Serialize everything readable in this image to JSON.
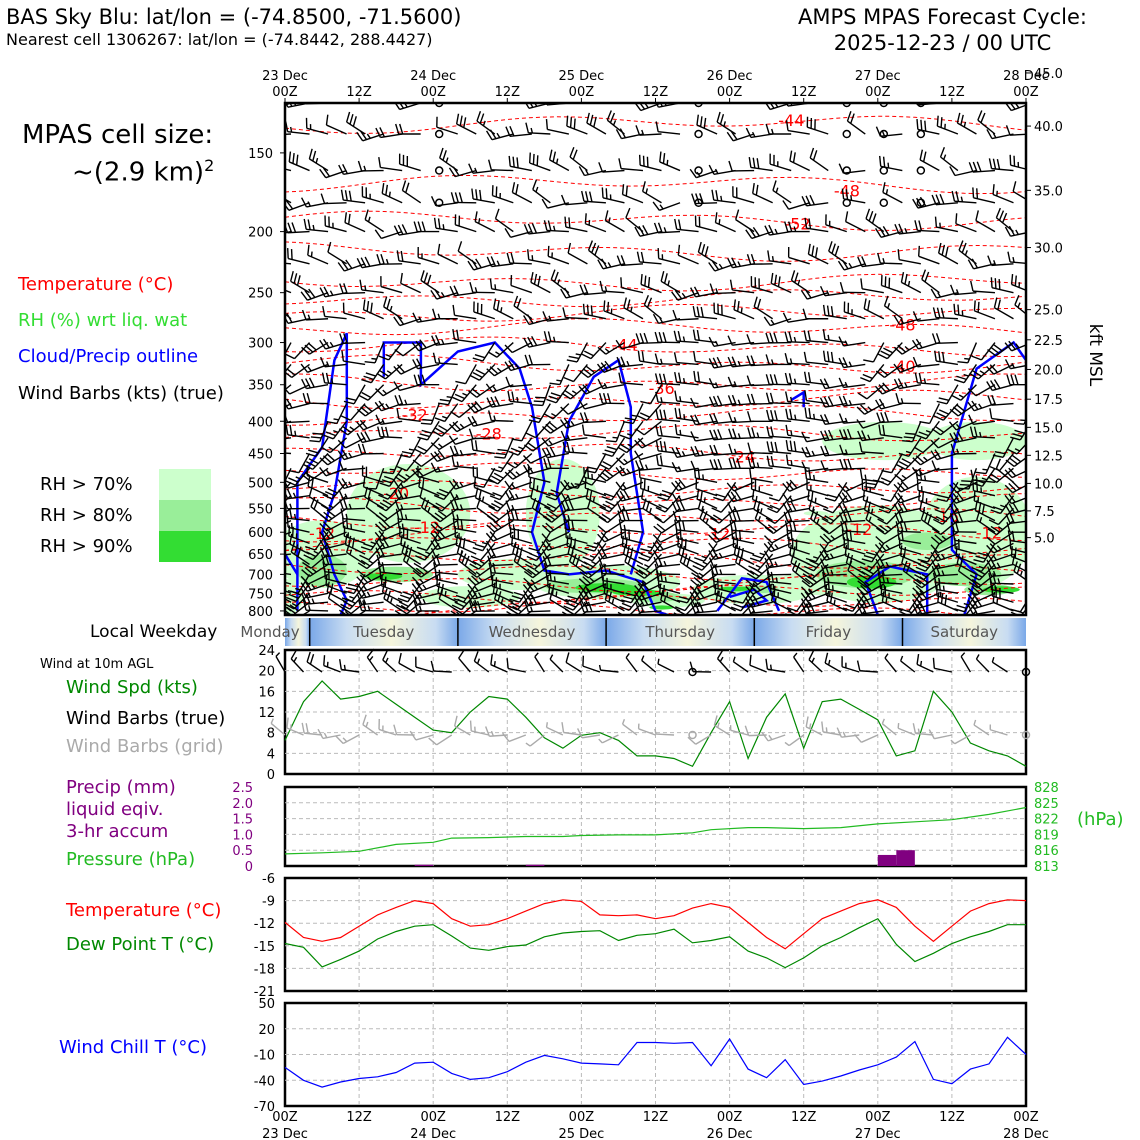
{
  "header": {
    "title": "BAS Sky Blu: lat/lon = (-74.8500, -71.5600)",
    "subtitle": "Nearest cell 1306267: lat/lon = (-74.8442, 288.4427)",
    "forecast_title": "AMPS MPAS Forecast Cycle:",
    "forecast_cycle": "2025-12-23 / 00 UTC"
  },
  "cell_size": {
    "line1": "MPAS cell size:",
    "line2": "~(2.9 km)",
    "sup": "2"
  },
  "legend": {
    "temperature": "Temperature (°C)",
    "rh": "RH (%) wrt liq. wat",
    "cloud": "Cloud/Precip outline",
    "wind": "Wind Barbs (kts) (true)",
    "rh70": "RH > 70%",
    "rh80": "RH > 80%",
    "rh90": "RH > 90%"
  },
  "colors": {
    "temp": "#ff0000",
    "cloud": "#0000ff",
    "rh70": "#ccffcc",
    "rh80": "#99ee99",
    "rh90": "#33dd33",
    "wind_speed": "#008800",
    "precip": "#800080",
    "pressure": "#22bb22",
    "dewpoint": "#008800",
    "windchill": "#0000ff",
    "grid_barb": "#aaaaaa"
  },
  "time_axis": {
    "top_labels": [
      {
        "h": 0,
        "l1": "23 Dec",
        "l2": "00Z"
      },
      {
        "h": 12,
        "l1": "",
        "l2": "12Z"
      },
      {
        "h": 24,
        "l1": "24 Dec",
        "l2": "00Z"
      },
      {
        "h": 36,
        "l1": "",
        "l2": "12Z"
      },
      {
        "h": 48,
        "l1": "25 Dec",
        "l2": "00Z"
      },
      {
        "h": 60,
        "l1": "",
        "l2": "12Z"
      },
      {
        "h": 72,
        "l1": "26 Dec",
        "l2": "00Z"
      },
      {
        "h": 84,
        "l1": "",
        "l2": "12Z"
      },
      {
        "h": 96,
        "l1": "27 Dec",
        "l2": "00Z"
      },
      {
        "h": 108,
        "l1": "",
        "l2": "12Z"
      },
      {
        "h": 120,
        "l1": "28 Dec",
        "l2": "00Z"
      }
    ],
    "hours_max": 120
  },
  "weekday": {
    "title": "Local Weekday",
    "days": [
      "Monday",
      "Tuesday",
      "Wednesday",
      "Thursday",
      "Friday",
      "Saturday"
    ]
  },
  "profile": {
    "pressure_ticks": [
      150,
      200,
      250,
      300,
      350,
      400,
      450,
      500,
      550,
      600,
      650,
      700,
      750,
      800
    ],
    "p_range": [
      125,
      812
    ],
    "kft_ticks": [
      {
        "p": 112,
        "label": "45.0"
      },
      {
        "p": 136,
        "label": "40.0"
      },
      {
        "p": 172,
        "label": "35.0"
      },
      {
        "p": 212,
        "label": "30.0"
      },
      {
        "p": 266,
        "label": "25.0"
      },
      {
        "p": 297,
        "label": "22.5"
      },
      {
        "p": 331,
        "label": "20.0"
      },
      {
        "p": 369,
        "label": "17.5"
      },
      {
        "p": 409,
        "label": "15.0"
      },
      {
        "p": 453,
        "label": "12.5"
      },
      {
        "p": 502,
        "label": "10.0"
      },
      {
        "p": 555,
        "label": "7.5"
      },
      {
        "p": 612,
        "label": "5.0"
      }
    ],
    "kft_label": "kft MSL",
    "temp_labels": [
      {
        "t": 82,
        "p": 133,
        "v": "-44"
      },
      {
        "t": 91,
        "p": 172,
        "v": "-48"
      },
      {
        "t": 83,
        "p": 194,
        "v": "-52"
      },
      {
        "t": 100,
        "p": 281,
        "v": "-48"
      },
      {
        "t": 55,
        "p": 302,
        "v": "-44"
      },
      {
        "t": 100,
        "p": 327,
        "v": "-40"
      },
      {
        "t": 61,
        "p": 354,
        "v": "-36"
      },
      {
        "t": 21,
        "p": 390,
        "v": "-32"
      },
      {
        "t": 33,
        "p": 418,
        "v": "-28"
      },
      {
        "t": 74,
        "p": 455,
        "v": "-24"
      },
      {
        "t": 18,
        "p": 520,
        "v": "-20"
      },
      {
        "t": 107,
        "p": 566,
        "v": "-16"
      },
      {
        "t": 23,
        "p": 589,
        "v": "-12"
      },
      {
        "t": 6,
        "p": 602,
        "v": "-12"
      },
      {
        "t": 70,
        "p": 603,
        "v": "-12"
      },
      {
        "t": 93,
        "p": 593,
        "v": "-12"
      },
      {
        "t": 114,
        "p": 601,
        "v": "-12"
      }
    ]
  },
  "surface": {
    "wind_title": "Wind at 10m AGL",
    "wind_spd_label": "Wind Spd (kts)",
    "wind_barbs_label": "Wind Barbs (true)",
    "grid_barbs_label": "Wind Barbs (grid)",
    "precip_label_1": "Precip (mm)",
    "precip_label_2": "liquid eqiv.",
    "precip_label_3": "3-hr accum",
    "pressure_label": "Pressure (hPa)",
    "hpa_label": "(hPa)",
    "temp_label": "Temperature (°C)",
    "dew_label": "Dew Point T (°C)",
    "chill_label": "Wind Chill T (°C)"
  },
  "chart_data": [
    {
      "type": "line",
      "title": "Wind Spd (kts)",
      "x_hours": [
        0,
        3,
        6,
        9,
        12,
        15,
        18,
        21,
        24,
        27,
        30,
        33,
        36,
        39,
        42,
        45,
        48,
        51,
        54,
        57,
        60,
        63,
        66,
        69,
        72,
        75,
        78,
        81,
        84,
        87,
        90,
        93,
        96,
        99,
        102,
        105,
        108,
        111,
        114,
        117,
        120
      ],
      "values": [
        6.5,
        14,
        18,
        14.5,
        15,
        16,
        13.5,
        11,
        8.5,
        8,
        12,
        15,
        14.5,
        11,
        7,
        5,
        7.5,
        8,
        6.5,
        3.5,
        3.5,
        3,
        1.5,
        8,
        14,
        3,
        11,
        15.5,
        5,
        14,
        14.5,
        12.5,
        10.5,
        3.5,
        4.5,
        16,
        12,
        6,
        4.5,
        3.5,
        1.5
      ],
      "ylim": [
        0,
        24
      ],
      "yticks": [
        0,
        4,
        8,
        12,
        16,
        20,
        24
      ]
    },
    {
      "type": "bar",
      "title": "Precip (mm) liquid eqiv. 3-hr accum",
      "bars": [
        {
          "h": 22.5,
          "v": 0.04
        },
        {
          "h": 40.5,
          "v": 0.04
        },
        {
          "h": 97.5,
          "v": 0.35
        },
        {
          "h": 100.5,
          "v": 0.5
        }
      ],
      "ylim": [
        0,
        2.5
      ],
      "yticks": [
        "0",
        "0.5",
        "1.0",
        "1.5",
        "2.0",
        "2.5"
      ]
    },
    {
      "type": "line",
      "title": "Pressure (hPa)",
      "x_hours": [
        0,
        6,
        12,
        18,
        24,
        27,
        33,
        39,
        45,
        48,
        54,
        60,
        66,
        69,
        75,
        78,
        84,
        90,
        96,
        102,
        108,
        114,
        120
      ],
      "values": [
        815.3,
        815.5,
        815.8,
        817.1,
        817.5,
        818.3,
        818.4,
        818.6,
        818.6,
        818.8,
        818.9,
        818.9,
        819.3,
        819.9,
        820.3,
        820.3,
        820.1,
        820.3,
        821.0,
        821.4,
        821.8,
        822.8,
        824.1
      ],
      "ylim": [
        813,
        828
      ],
      "yticks": [
        "813",
        "816",
        "819",
        "822",
        "825",
        "828"
      ]
    },
    {
      "type": "line",
      "title": "Temperature (°C)",
      "x_hours": [
        0,
        3,
        6,
        9,
        12,
        15,
        18,
        21,
        24,
        27,
        30,
        33,
        36,
        39,
        42,
        45,
        48,
        51,
        54,
        57,
        60,
        63,
        66,
        69,
        72,
        75,
        78,
        81,
        84,
        87,
        90,
        93,
        96,
        99,
        102,
        105,
        108,
        111,
        114,
        117,
        120
      ],
      "series": [
        {
          "name": "Temperature (°C)",
          "values": [
            -11.9,
            -13.9,
            -14.4,
            -13.9,
            -12.4,
            -10.9,
            -9.9,
            -9.0,
            -9.4,
            -11.4,
            -12.4,
            -12.2,
            -11.4,
            -10.4,
            -9.4,
            -8.9,
            -9.1,
            -10.9,
            -11.0,
            -10.9,
            -11.4,
            -11.0,
            -10.0,
            -9.4,
            -9.9,
            -11.9,
            -13.9,
            -15.4,
            -13.4,
            -11.4,
            -10.4,
            -9.4,
            -8.9,
            -9.9,
            -12.4,
            -14.4,
            -12.4,
            -10.4,
            -9.4,
            -8.9,
            -9.0
          ]
        },
        {
          "name": "Dew Point T (°C)",
          "values": [
            -14.7,
            -15.2,
            -17.8,
            -16.8,
            -15.7,
            -14.1,
            -13.1,
            -12.4,
            -12.2,
            -13.7,
            -15.3,
            -15.6,
            -15.1,
            -14.9,
            -13.8,
            -13.3,
            -13.1,
            -13.0,
            -14.3,
            -13.6,
            -13.4,
            -12.8,
            -14.6,
            -14.3,
            -13.8,
            -15.7,
            -16.6,
            -17.9,
            -16.6,
            -15.0,
            -13.9,
            -12.6,
            -11.4,
            -14.8,
            -17.1,
            -16.0,
            -14.7,
            -13.8,
            -13.1,
            -12.2,
            -12.2
          ]
        }
      ],
      "ylim": [
        -21,
        -6
      ],
      "yticks": [
        "-21",
        "-18",
        "-15",
        "-12",
        "-9",
        "-6"
      ]
    },
    {
      "type": "line",
      "title": "Wind Chill T (°C)",
      "x_hours": [
        0,
        3,
        6,
        9,
        12,
        15,
        18,
        21,
        24,
        27,
        30,
        33,
        36,
        39,
        42,
        45,
        48,
        51,
        54,
        57,
        60,
        63,
        66,
        69,
        72,
        75,
        78,
        81,
        84,
        87,
        90,
        93,
        96,
        99,
        102,
        105,
        108,
        111,
        114,
        117,
        120
      ],
      "values": [
        -25,
        -40,
        -48,
        -42,
        -38,
        -36,
        -31,
        -20,
        -19,
        -32,
        -39,
        -37,
        -30,
        -19,
        -11,
        -15,
        -20,
        -21,
        -22,
        4,
        4,
        3,
        4,
        -23,
        8,
        -27,
        -37,
        -16,
        -45,
        -41,
        -35,
        -28,
        -22,
        -13,
        5,
        -39,
        -44,
        -27,
        -21,
        10,
        -10
      ],
      "ylim": [
        -70,
        50
      ],
      "yticks": [
        "-70",
        "-40",
        "-10",
        "20",
        "50"
      ]
    }
  ]
}
